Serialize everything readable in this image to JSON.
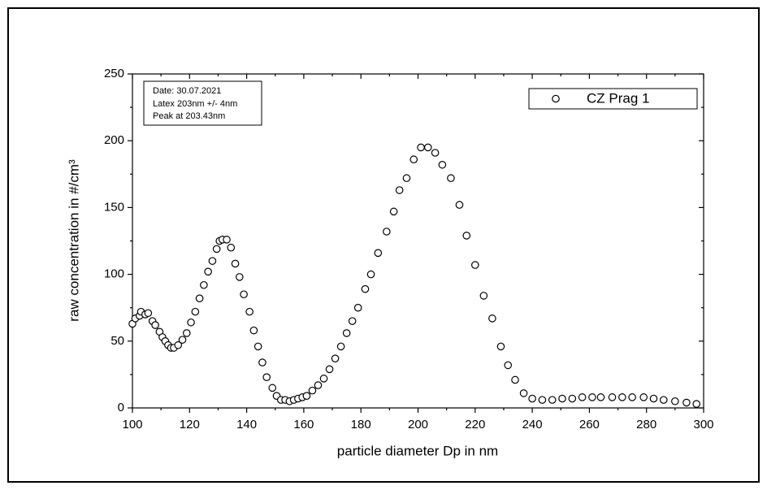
{
  "chart_data": {
    "type": "scatter",
    "xlabel": "particle diameter Dp in nm",
    "ylabel": "raw concentration in #/cm³",
    "annotations": [
      "Date: 30.07.2021",
      "Latex 203nm +/- 4nm",
      "Peak at 203.43nm"
    ],
    "xlim": [
      100,
      300
    ],
    "xticks": [
      100,
      120,
      140,
      160,
      180,
      200,
      220,
      240,
      260,
      280,
      300
    ],
    "ylim": [
      0,
      250
    ],
    "yticks": [
      0,
      50,
      100,
      150,
      200,
      250
    ],
    "legend": "top-right",
    "series": [
      {
        "name": "CZ Prag 1",
        "color": "#000000",
        "x": [
          100,
          101,
          102.5,
          103,
          104.5,
          105.5,
          107,
          108,
          109.5,
          110.5,
          111.5,
          112.5,
          113.5,
          114.5,
          116,
          117.5,
          119,
          120.5,
          122,
          123.5,
          125,
          126.5,
          128,
          129.5,
          130.5,
          131.5,
          133,
          134.5,
          136,
          137.5,
          139,
          141,
          142.5,
          144,
          145.5,
          147,
          149,
          150.5,
          152,
          153.5,
          155,
          156.5,
          158,
          159.5,
          161,
          163,
          165,
          167,
          169,
          171,
          173,
          175,
          177,
          179,
          181.5,
          183.5,
          186,
          189,
          191.5,
          193.5,
          196,
          198.5,
          201,
          203.5,
          206,
          208.5,
          211.5,
          214.5,
          217,
          220,
          223,
          226,
          229,
          231.5,
          234,
          237,
          240,
          243.5,
          247,
          250.5,
          254,
          257.5,
          261,
          264,
          268,
          271.5,
          275,
          279,
          282.5,
          286,
          290,
          294,
          297.5
        ],
        "values": [
          63,
          67,
          69,
          72,
          70,
          71,
          65,
          62,
          57,
          53,
          50,
          47,
          45,
          45,
          47,
          51,
          56,
          64,
          72,
          82,
          92,
          102,
          110,
          119,
          125,
          126,
          126,
          120,
          108,
          98,
          85,
          72,
          58,
          46,
          34,
          23,
          15,
          9,
          6,
          6,
          5,
          6,
          7,
          8,
          9,
          13,
          17,
          22,
          29,
          37,
          46,
          56,
          65,
          75,
          89,
          100,
          116,
          132,
          147,
          163,
          172,
          186,
          195,
          195,
          191,
          182,
          172,
          152,
          129,
          107,
          84,
          67,
          46,
          32,
          21,
          11,
          7,
          6,
          6,
          7,
          7,
          8,
          8,
          8,
          8,
          8,
          8,
          8,
          7,
          6,
          5,
          4,
          3
        ]
      }
    ]
  }
}
